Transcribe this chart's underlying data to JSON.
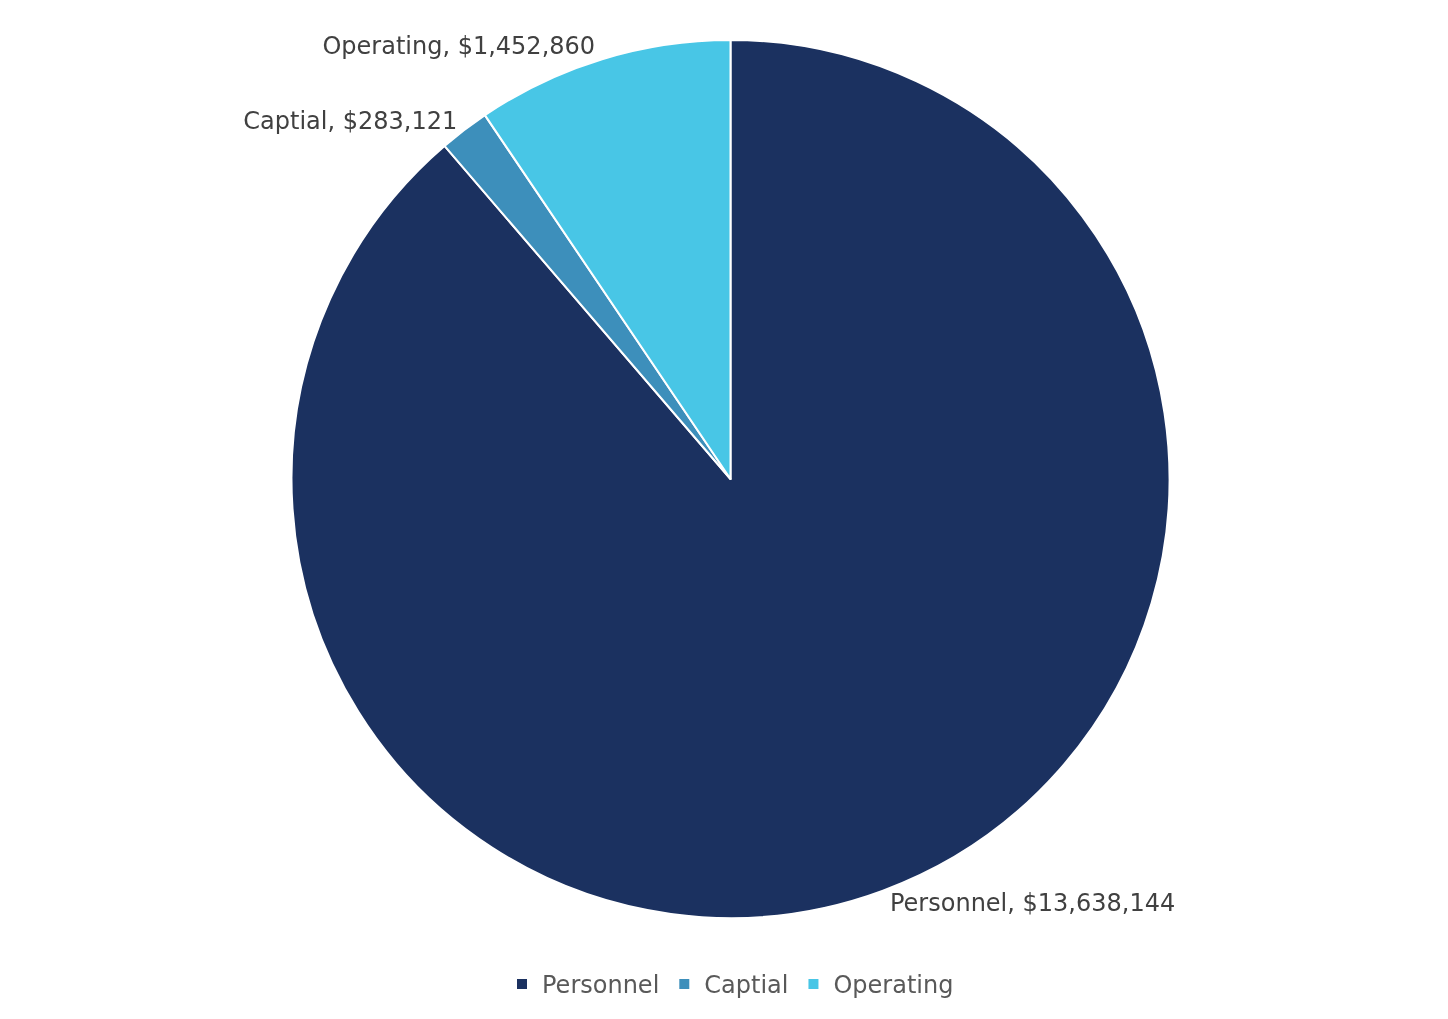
{
  "chart_data": {
    "type": "pie",
    "categories": [
      "Personnel",
      "Captial",
      "Operating"
    ],
    "values": [
      13638144,
      283121,
      1452860
    ],
    "colors": [
      "#1b3160",
      "#3d8fbb",
      "#48c6e6"
    ],
    "value_labels": [
      "Personnel, $13,638,144",
      "Captial, $283,121",
      "Operating, $1,452,860"
    ],
    "legend": "bottom"
  }
}
